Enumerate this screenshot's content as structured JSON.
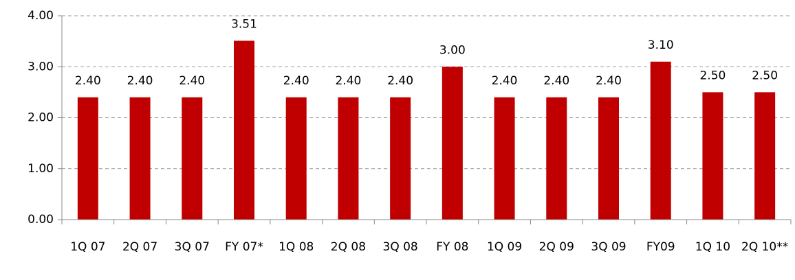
{
  "chart_data": {
    "type": "bar",
    "categories": [
      "1Q 07",
      "2Q 07",
      "3Q 07",
      "FY 07*",
      "1Q 08",
      "2Q 08",
      "3Q 08",
      "FY 08",
      "1Q 09",
      "2Q 09",
      "3Q 09",
      "FY09",
      "1Q 10",
      "2Q 10**"
    ],
    "values": [
      2.4,
      2.4,
      2.4,
      3.51,
      2.4,
      2.4,
      2.4,
      3.0,
      2.4,
      2.4,
      2.4,
      3.1,
      2.5,
      2.5
    ],
    "value_labels": [
      "2.40",
      "2.40",
      "2.40",
      "3.51",
      "2.40",
      "2.40",
      "2.40",
      "3.00",
      "2.40",
      "2.40",
      "2.40",
      "3.10",
      "2.50",
      "2.50"
    ],
    "color": "#c00000",
    "ylim": [
      0,
      4
    ],
    "yticks": [
      {
        "value": 0,
        "label": "0.00"
      },
      {
        "value": 1,
        "label": "1.00"
      },
      {
        "value": 2,
        "label": "2.00"
      },
      {
        "value": 3,
        "label": "3.00"
      },
      {
        "value": 4,
        "label": "4.00"
      }
    ],
    "grid": true
  }
}
